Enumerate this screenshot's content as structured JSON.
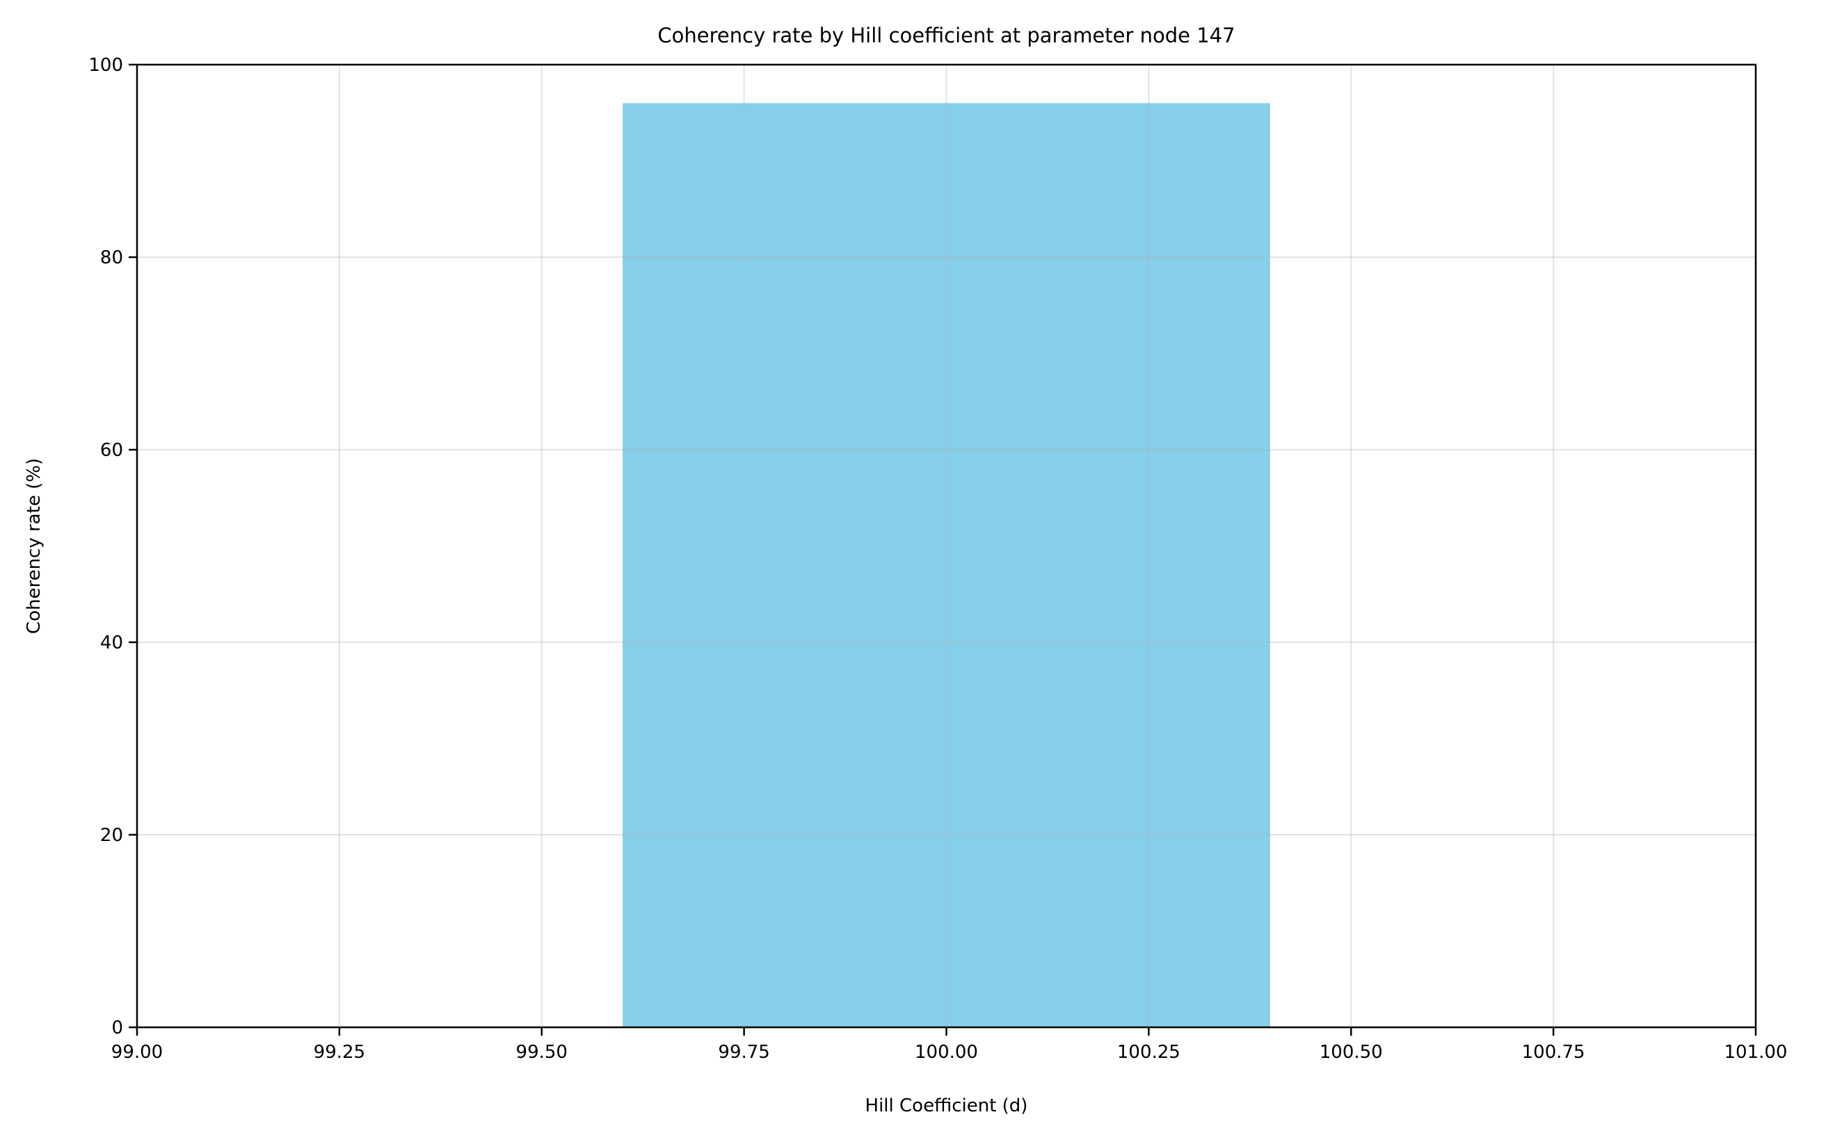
{
  "chart_data": {
    "type": "bar",
    "title": "Coherency rate by Hill coefficient at parameter node 147",
    "xlabel": "Hill Coefficient (d)",
    "ylabel": "Coherency rate (%)",
    "xlim": [
      99.0,
      101.0
    ],
    "ylim": [
      0,
      100
    ],
    "xticks": [
      "99.00",
      "99.25",
      "99.50",
      "99.75",
      "100.00",
      "100.25",
      "100.50",
      "100.75",
      "101.00"
    ],
    "yticks": [
      "0",
      "20",
      "40",
      "60",
      "80",
      "100"
    ],
    "grid": true,
    "bars": [
      {
        "x": 100.0,
        "width": 0.8,
        "value": 96.0
      }
    ],
    "colors": {
      "bar": "#87CEEB",
      "grid": "#e3e3e3",
      "axis": "#000000"
    }
  }
}
